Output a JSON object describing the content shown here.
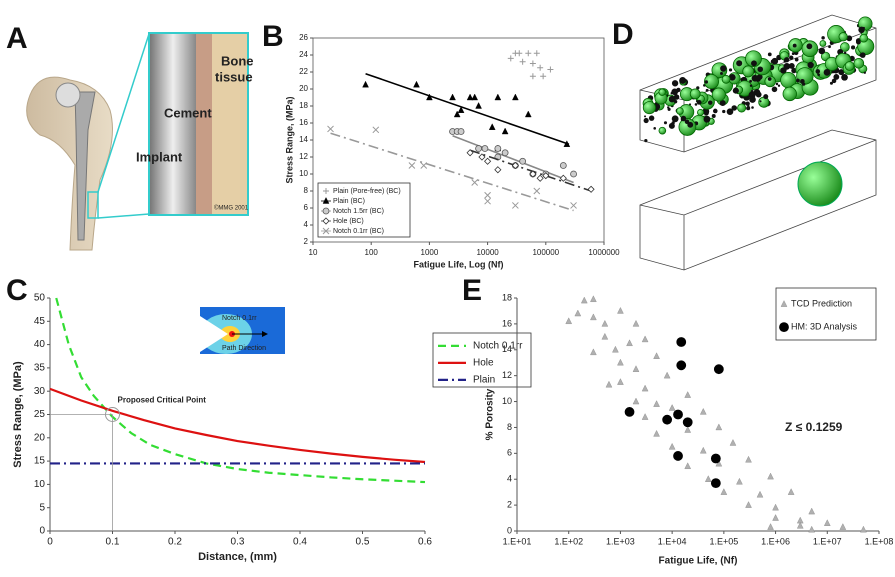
{
  "panel_labels": [
    "A",
    "B",
    "C",
    "D",
    "E"
  ],
  "figure_a": {
    "labels": [
      "Bone",
      "tissue",
      "Cement",
      "Implant",
      "©MMG 2001"
    ]
  },
  "chart_data": [
    {
      "type": "scatter",
      "x_label": "Fatigue Life, Log (Nf)",
      "y_label": "Stress Range, (MPa)",
      "xlog": true,
      "xlim": [
        10,
        1000000
      ],
      "xticks": [
        10,
        100,
        1000,
        10000,
        100000,
        1000000
      ],
      "ylim": [
        2,
        26
      ],
      "yticks": [
        2,
        4,
        6,
        8,
        10,
        12,
        14,
        16,
        18,
        20,
        22,
        24,
        26
      ],
      "legend": "lower left",
      "grid": false,
      "series": [
        {
          "name": "Plain (Pore-free) (BC)",
          "marker": "plus",
          "color": "#999999",
          "x": [
            30000,
            35000,
            50000,
            70000,
            25000,
            60000,
            80000,
            120000,
            60000,
            90000,
            40000
          ],
          "values": [
            24.2,
            24.2,
            24.2,
            24.2,
            23.6,
            23,
            22.5,
            22.3,
            21.5,
            21.5,
            23.2
          ]
        },
        {
          "name": "Plain (BC)",
          "marker": "triangle",
          "color": "#000000",
          "style": "solid",
          "x": [
            80,
            600,
            1000,
            2500,
            3000,
            5000,
            6000,
            3500,
            7000,
            15000,
            12000,
            20000,
            30000,
            15000,
            50000,
            230000
          ],
          "values": [
            20.5,
            20.5,
            19,
            19,
            17,
            19,
            19,
            17.5,
            18,
            19,
            15.5,
            15,
            19,
            13,
            17,
            13.5
          ],
          "trend": {
            "x": [
              80,
              250000
            ],
            "values": [
              21.8,
              13.5
            ]
          }
        },
        {
          "name": "Notch 1.5rr (BC)",
          "marker": "circle",
          "color": "#888888",
          "style": "solid",
          "x": [
            2500,
            3000,
            3500,
            7000,
            9000,
            15000,
            15000,
            20000,
            40000,
            30000,
            60000,
            100000,
            200000,
            300000
          ],
          "values": [
            15,
            15,
            15,
            13,
            13,
            13,
            12,
            12.5,
            11.5,
            11,
            10,
            10,
            11,
            10
          ],
          "trend": {
            "x": [
              2500,
              300000
            ],
            "values": [
              14.5,
              9
            ]
          }
        },
        {
          "name": "Hole (BC)",
          "marker": "diamond",
          "color": "#333333",
          "style": "dashdot",
          "x": [
            5000,
            8000,
            10000,
            15000,
            30000,
            60000,
            80000,
            100000,
            200000,
            600000
          ],
          "values": [
            12.5,
            12,
            11.5,
            10.5,
            11,
            10,
            9.5,
            9.8,
            9.5,
            8.2
          ],
          "trend": {
            "x": [
              5000,
              600000
            ],
            "values": [
              12.8,
              8
            ]
          }
        },
        {
          "name": "Notch 0.1rr (BC)",
          "marker": "cross",
          "color": "#999999",
          "style": "dashdot",
          "x": [
            20,
            120,
            500,
            800,
            6000,
            10000,
            10000,
            30000,
            70000,
            300000
          ],
          "values": [
            15.3,
            15.2,
            11,
            11,
            9,
            7.5,
            6.8,
            6.3,
            8,
            6.3
          ],
          "trend": {
            "x": [
              20,
              300000
            ],
            "values": [
              14.8,
              5.7
            ]
          }
        }
      ]
    },
    {
      "type": "line",
      "x_label": "Distance, (mm)",
      "y_label": "Stress Range, (MPa)",
      "xlim": [
        0,
        0.6
      ],
      "xticks": [
        0,
        0.1,
        0.2,
        0.3,
        0.4,
        0.5,
        0.6
      ],
      "ylim": [
        0,
        50
      ],
      "yticks": [
        0,
        5,
        10,
        15,
        20,
        25,
        30,
        35,
        40,
        45,
        50
      ],
      "legend": "right",
      "grid": false,
      "inset_labels": [
        "Notch 0.1rr",
        "Path Direction"
      ],
      "annotations": [
        {
          "text": "Proposed Critical Point",
          "x": 0.1,
          "y": 25
        }
      ],
      "series": [
        {
          "name": "Notch 0.1rr",
          "color": "#33dd33",
          "style": "dashed",
          "x": [
            0.01,
            0.02,
            0.03,
            0.05,
            0.07,
            0.1,
            0.13,
            0.16,
            0.2,
            0.25,
            0.3,
            0.35,
            0.4,
            0.45,
            0.5,
            0.55,
            0.6
          ],
          "values": [
            50,
            45,
            40,
            33,
            29,
            24.5,
            21,
            18.5,
            16.5,
            14.5,
            13.3,
            12.5,
            12,
            11.5,
            11.1,
            10.8,
            10.5
          ]
        },
        {
          "name": "Hole",
          "color": "#dd1111",
          "style": "solid",
          "x": [
            0,
            0.05,
            0.1,
            0.15,
            0.2,
            0.25,
            0.3,
            0.35,
            0.4,
            0.45,
            0.5,
            0.55,
            0.6
          ],
          "values": [
            30.5,
            28,
            25.8,
            23.8,
            22,
            20.6,
            19.3,
            18.3,
            17.4,
            16.6,
            15.9,
            15.3,
            14.8
          ]
        },
        {
          "name": "Plain",
          "color": "#222288",
          "style": "dashdot",
          "x": [
            0,
            0.6
          ],
          "values": [
            14.5,
            14.5
          ]
        }
      ]
    },
    {
      "type": "scatter",
      "x_label": "Fatigue Life, (Nf)",
      "y_label": "% Porosity",
      "xlog": true,
      "xlim": [
        10,
        100000000
      ],
      "xticks": [
        {
          "value": 10,
          "label": "1.E+01"
        },
        {
          "value": 100,
          "label": "1.E+02"
        },
        {
          "value": 1000,
          "label": "1.E+03"
        },
        {
          "value": 10000,
          "label": "1.E+04"
        },
        {
          "value": 100000,
          "label": "1.E+05"
        },
        {
          "value": 1000000,
          "label": "1.E+06"
        },
        {
          "value": 10000000,
          "label": "1.E+07"
        },
        {
          "value": 100000000,
          "label": "1.E+08"
        }
      ],
      "ylim": [
        0,
        18
      ],
      "yticks": [
        0,
        2,
        4,
        6,
        8,
        10,
        12,
        14,
        16,
        18
      ],
      "legend": "upper right",
      "grid": false,
      "annotations": [
        {
          "text": "Z ≤ 0.1259"
        }
      ],
      "series": [
        {
          "name": "TCD Prediction",
          "marker": "triangle",
          "color": "#b0b0b0",
          "x": [
            200,
            300,
            100,
            150,
            300,
            500,
            1000,
            2000,
            500,
            800,
            1500,
            3000,
            300,
            1000,
            2000,
            5000,
            1000,
            3000,
            8000,
            600,
            2000,
            5000,
            20000,
            3000,
            10000,
            40000,
            5000,
            20000,
            80000,
            10000,
            40000,
            150000,
            20000,
            80000,
            300000,
            50000,
            200000,
            800000,
            100000,
            500000,
            2000000,
            300000,
            1000000,
            5000000,
            1000000,
            3000000,
            10000000,
            3000000,
            20000000,
            50000000,
            5000000,
            800000
          ],
          "values": [
            17.8,
            17.9,
            16.2,
            16.8,
            16.5,
            16,
            17,
            16,
            15,
            14,
            14.5,
            14.8,
            13.8,
            13,
            12.5,
            13.5,
            11.5,
            11,
            12,
            11.3,
            10,
            9.8,
            10.5,
            8.8,
            9.5,
            9.2,
            7.5,
            7.8,
            8,
            6.5,
            6.2,
            6.8,
            5,
            5.2,
            5.5,
            4,
            3.8,
            4.2,
            3,
            2.8,
            3,
            2,
            1.8,
            1.5,
            1,
            0.8,
            0.6,
            0.4,
            0.3,
            0.1,
            0.1,
            0.3
          ]
        },
        {
          "name": "HM: 3D Analysis",
          "marker": "circle",
          "color": "#000000",
          "x": [
            15000,
            15000,
            80000,
            1500,
            8000,
            13000,
            20000,
            13000,
            70000,
            70000
          ],
          "values": [
            14.6,
            12.8,
            12.5,
            9.2,
            8.6,
            9.0,
            8.4,
            5.8,
            5.6,
            3.7
          ]
        }
      ]
    }
  ]
}
